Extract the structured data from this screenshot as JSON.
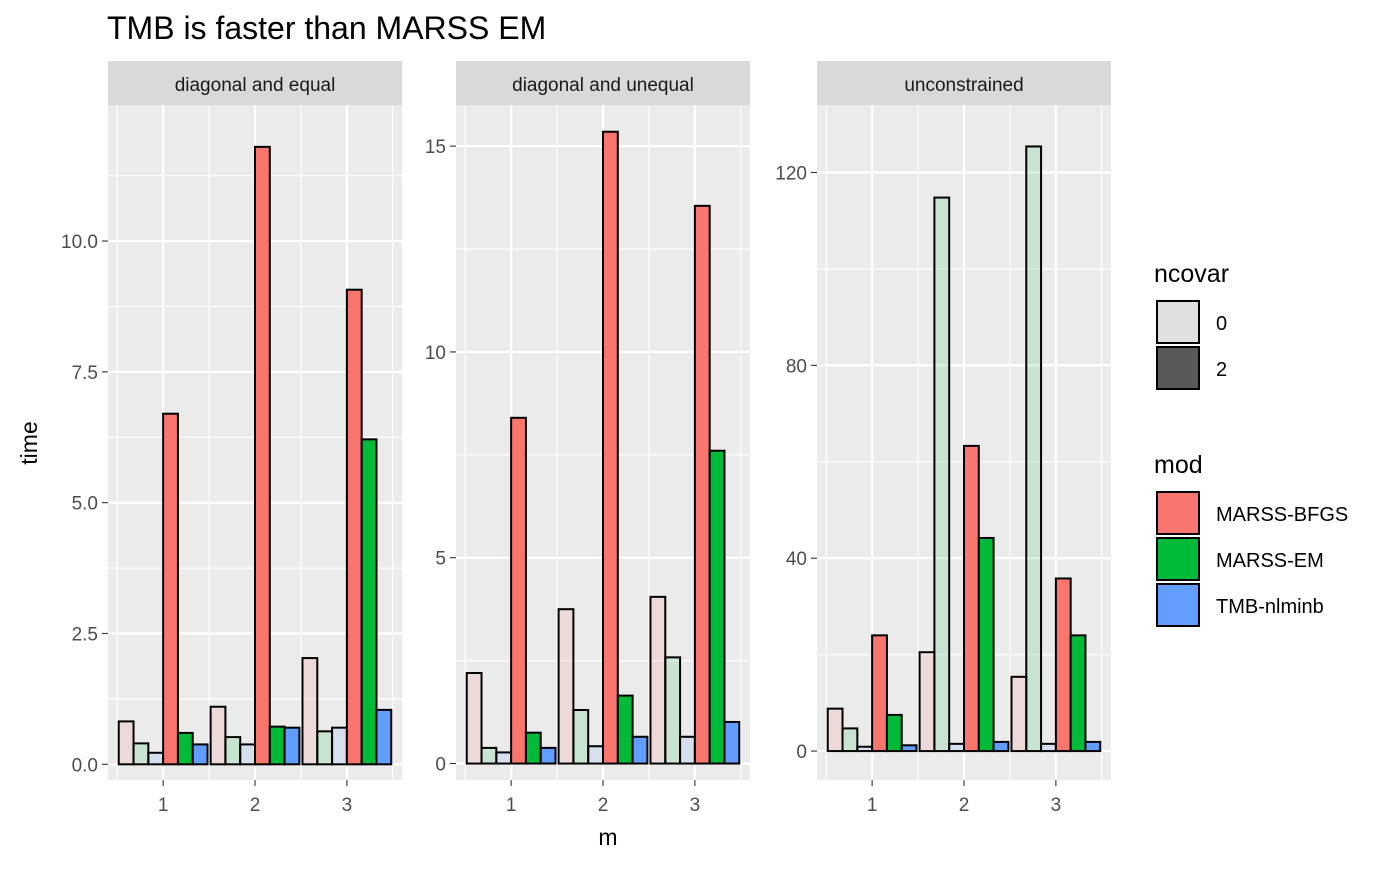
{
  "chart_data": {
    "type": "bar",
    "title": "TMB is faster than MARSS EM",
    "xlabel": "m",
    "ylabel": "time",
    "x_ticks": [
      "1",
      "2",
      "3"
    ],
    "legends": {
      "ncovar": {
        "title": "ncovar",
        "items": [
          {
            "label": "0",
            "color": "#e0e0e0"
          },
          {
            "label": "2",
            "color": "#595959"
          }
        ]
      },
      "mod": {
        "title": "mod",
        "items": [
          {
            "label": "MARSS-BFGS",
            "color": "#f8766d"
          },
          {
            "label": "MARSS-EM",
            "color": "#00ba38"
          },
          {
            "label": "TMB-nlminb",
            "color": "#619cff"
          }
        ]
      }
    },
    "legend_position": "right",
    "grid": true,
    "bar_order": [
      "ncovar 0 / MARSS-BFGS",
      "ncovar 0 / MARSS-EM",
      "ncovar 0 / TMB-nlminb",
      "mod MARSS-BFGS",
      "mod MARSS-EM",
      "mod TMB-nlminb"
    ],
    "panels": [
      {
        "strip": "diagonal and equal",
        "ylim": [
          -0.3,
          12.6
        ],
        "y_ticks": [
          0,
          2.5,
          5,
          7.5,
          10
        ],
        "y_tick_labels": [
          "0.0",
          "2.5",
          "5.0",
          "7.5",
          "10.0"
        ],
        "groups": [
          {
            "m": "1",
            "values": [
              0.82,
              0.4,
              0.22,
              6.7,
              0.6,
              0.38
            ]
          },
          {
            "m": "2",
            "values": [
              1.1,
              0.52,
              0.38,
              11.8,
              0.72,
              0.7
            ]
          },
          {
            "m": "3",
            "values": [
              2.03,
              0.63,
              0.7,
              9.07,
              6.21,
              1.04
            ]
          }
        ]
      },
      {
        "strip": "diagonal and unequal",
        "ylim": [
          -0.4,
          16.0
        ],
        "y_ticks": [
          0,
          5,
          10,
          15
        ],
        "y_tick_labels": [
          "0",
          "5",
          "10",
          "15"
        ],
        "groups": [
          {
            "m": "1",
            "values": [
              2.2,
              0.38,
              0.27,
              8.4,
              0.75,
              0.38
            ]
          },
          {
            "m": "2",
            "values": [
              3.75,
              1.3,
              0.42,
              15.35,
              1.65,
              0.65
            ]
          },
          {
            "m": "3",
            "values": [
              4.05,
              2.58,
              0.65,
              13.55,
              7.6,
              1.01
            ]
          }
        ]
      },
      {
        "strip": "unconstrained",
        "ylim": [
          -6,
          134
        ],
        "y_ticks": [
          0,
          40,
          80,
          120
        ],
        "y_tick_labels": [
          "0",
          "40",
          "80",
          "120"
        ],
        "groups": [
          {
            "m": "1",
            "values": [
              8.8,
              4.7,
              0.9,
              24.0,
              7.5,
              1.2
            ]
          },
          {
            "m": "2",
            "values": [
              20.5,
              114.8,
              1.5,
              63.3,
              44.2,
              1.9
            ]
          },
          {
            "m": "3",
            "values": [
              15.4,
              125.4,
              1.5,
              35.8,
              24.0,
              1.9
            ]
          }
        ]
      }
    ]
  }
}
